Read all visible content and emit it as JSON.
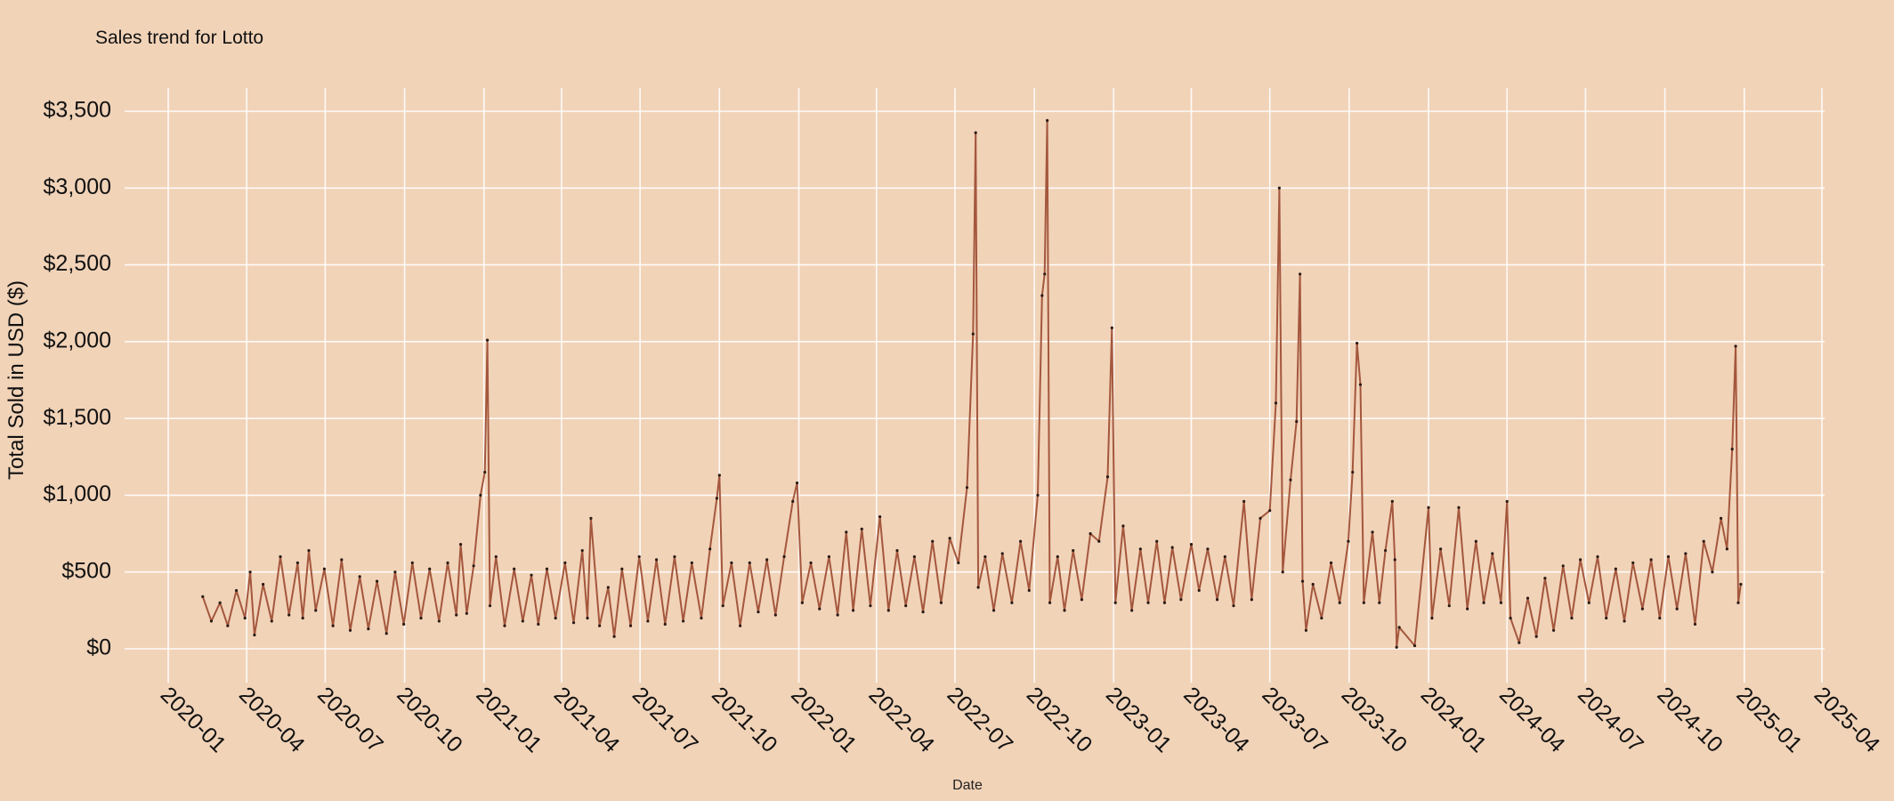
{
  "colors": {
    "background": "#f1d3b8",
    "line": "#a4573d",
    "point": "#2a1a14",
    "grid": "#ffffff"
  },
  "chart_data": {
    "type": "line",
    "title": "Sales trend for Lotto",
    "xlabel": "Date",
    "ylabel": "Total Sold in USD ($)",
    "xlim": [
      "2020-01-01",
      "2025-04-01"
    ],
    "ylim": [
      0,
      3500
    ],
    "grid": true,
    "markers": true,
    "yticks": [
      0,
      500,
      1000,
      1500,
      2000,
      2500,
      3000,
      3500
    ],
    "ytick_labels": [
      "$0",
      "$500",
      "$1,000",
      "$1,500",
      "$2,000",
      "$2,500",
      "$3,000",
      "$3,500"
    ],
    "xticks": [
      "2020-01",
      "2020-04",
      "2020-07",
      "2020-10",
      "2021-01",
      "2021-04",
      "2021-07",
      "2021-10",
      "2022-01",
      "2022-04",
      "2022-07",
      "2022-10",
      "2023-01",
      "2023-04",
      "2023-07",
      "2023-10",
      "2024-01",
      "2024-04",
      "2024-07",
      "2024-10",
      "2025-01",
      "2025-04"
    ],
    "points": [
      [
        "2020-02-10",
        340
      ],
      [
        "2020-02-20",
        180
      ],
      [
        "2020-03-01",
        300
      ],
      [
        "2020-03-10",
        150
      ],
      [
        "2020-03-20",
        380
      ],
      [
        "2020-03-30",
        200
      ],
      [
        "2020-04-05",
        500
      ],
      [
        "2020-04-10",
        90
      ],
      [
        "2020-04-20",
        420
      ],
      [
        "2020-04-30",
        180
      ],
      [
        "2020-05-10",
        600
      ],
      [
        "2020-05-20",
        220
      ],
      [
        "2020-05-30",
        560
      ],
      [
        "2020-06-05",
        200
      ],
      [
        "2020-06-12",
        640
      ],
      [
        "2020-06-20",
        250
      ],
      [
        "2020-06-30",
        520
      ],
      [
        "2020-07-10",
        150
      ],
      [
        "2020-07-20",
        580
      ],
      [
        "2020-07-30",
        120
      ],
      [
        "2020-08-10",
        470
      ],
      [
        "2020-08-20",
        130
      ],
      [
        "2020-08-30",
        440
      ],
      [
        "2020-09-10",
        100
      ],
      [
        "2020-09-20",
        500
      ],
      [
        "2020-09-30",
        160
      ],
      [
        "2020-10-10",
        560
      ],
      [
        "2020-10-20",
        200
      ],
      [
        "2020-10-30",
        520
      ],
      [
        "2020-11-10",
        180
      ],
      [
        "2020-11-20",
        560
      ],
      [
        "2020-11-30",
        220
      ],
      [
        "2020-12-05",
        680
      ],
      [
        "2020-12-12",
        230
      ],
      [
        "2020-12-20",
        540
      ],
      [
        "2020-12-28",
        1000
      ],
      [
        "2021-01-02",
        1150
      ],
      [
        "2021-01-05",
        2010
      ],
      [
        "2021-01-08",
        280
      ],
      [
        "2021-01-15",
        600
      ],
      [
        "2021-01-25",
        150
      ],
      [
        "2021-02-05",
        520
      ],
      [
        "2021-02-15",
        180
      ],
      [
        "2021-02-25",
        480
      ],
      [
        "2021-03-05",
        160
      ],
      [
        "2021-03-15",
        520
      ],
      [
        "2021-03-25",
        200
      ],
      [
        "2021-04-05",
        560
      ],
      [
        "2021-04-15",
        170
      ],
      [
        "2021-04-25",
        640
      ],
      [
        "2021-05-01",
        200
      ],
      [
        "2021-05-05",
        850
      ],
      [
        "2021-05-15",
        150
      ],
      [
        "2021-05-25",
        400
      ],
      [
        "2021-06-01",
        80
      ],
      [
        "2021-06-10",
        520
      ],
      [
        "2021-06-20",
        150
      ],
      [
        "2021-06-30",
        600
      ],
      [
        "2021-07-10",
        180
      ],
      [
        "2021-07-20",
        580
      ],
      [
        "2021-07-30",
        160
      ],
      [
        "2021-08-10",
        600
      ],
      [
        "2021-08-20",
        180
      ],
      [
        "2021-08-30",
        560
      ],
      [
        "2021-09-10",
        200
      ],
      [
        "2021-09-20",
        650
      ],
      [
        "2021-09-28",
        980
      ],
      [
        "2021-10-01",
        1130
      ],
      [
        "2021-10-05",
        280
      ],
      [
        "2021-10-15",
        560
      ],
      [
        "2021-10-25",
        150
      ],
      [
        "2021-11-05",
        560
      ],
      [
        "2021-11-15",
        240
      ],
      [
        "2021-11-25",
        580
      ],
      [
        "2021-12-05",
        220
      ],
      [
        "2021-12-15",
        600
      ],
      [
        "2021-12-25",
        960
      ],
      [
        "2021-12-30",
        1080
      ],
      [
        "2022-01-05",
        300
      ],
      [
        "2022-01-15",
        560
      ],
      [
        "2022-01-25",
        260
      ],
      [
        "2022-02-05",
        600
      ],
      [
        "2022-02-15",
        220
      ],
      [
        "2022-02-25",
        760
      ],
      [
        "2022-03-05",
        250
      ],
      [
        "2022-03-15",
        780
      ],
      [
        "2022-03-25",
        280
      ],
      [
        "2022-04-05",
        860
      ],
      [
        "2022-04-15",
        250
      ],
      [
        "2022-04-25",
        640
      ],
      [
        "2022-05-05",
        280
      ],
      [
        "2022-05-15",
        600
      ],
      [
        "2022-05-25",
        240
      ],
      [
        "2022-06-05",
        700
      ],
      [
        "2022-06-15",
        300
      ],
      [
        "2022-06-25",
        720
      ],
      [
        "2022-07-05",
        560
      ],
      [
        "2022-07-15",
        1050
      ],
      [
        "2022-07-22",
        2050
      ],
      [
        "2022-07-25",
        3360
      ],
      [
        "2022-07-28",
        400
      ],
      [
        "2022-08-05",
        600
      ],
      [
        "2022-08-15",
        250
      ],
      [
        "2022-08-25",
        620
      ],
      [
        "2022-09-05",
        300
      ],
      [
        "2022-09-15",
        700
      ],
      [
        "2022-09-25",
        380
      ],
      [
        "2022-10-05",
        1000
      ],
      [
        "2022-10-10",
        2300
      ],
      [
        "2022-10-13",
        2440
      ],
      [
        "2022-10-16",
        3440
      ],
      [
        "2022-10-19",
        300
      ],
      [
        "2022-10-28",
        600
      ],
      [
        "2022-11-05",
        250
      ],
      [
        "2022-11-15",
        640
      ],
      [
        "2022-11-25",
        320
      ],
      [
        "2022-12-05",
        750
      ],
      [
        "2022-12-15",
        700
      ],
      [
        "2022-12-25",
        1120
      ],
      [
        "2022-12-30",
        2090
      ],
      [
        "2023-01-03",
        300
      ],
      [
        "2023-01-12",
        800
      ],
      [
        "2023-01-22",
        250
      ],
      [
        "2023-02-01",
        650
      ],
      [
        "2023-02-10",
        300
      ],
      [
        "2023-02-20",
        700
      ],
      [
        "2023-03-01",
        300
      ],
      [
        "2023-03-10",
        660
      ],
      [
        "2023-03-20",
        320
      ],
      [
        "2023-04-01",
        680
      ],
      [
        "2023-04-10",
        380
      ],
      [
        "2023-04-20",
        650
      ],
      [
        "2023-05-01",
        320
      ],
      [
        "2023-05-10",
        600
      ],
      [
        "2023-05-20",
        280
      ],
      [
        "2023-06-01",
        960
      ],
      [
        "2023-06-10",
        320
      ],
      [
        "2023-06-20",
        850
      ],
      [
        "2023-07-01",
        900
      ],
      [
        "2023-07-08",
        1600
      ],
      [
        "2023-07-12",
        3000
      ],
      [
        "2023-07-16",
        500
      ],
      [
        "2023-07-25",
        1100
      ],
      [
        "2023-08-01",
        1480
      ],
      [
        "2023-08-05",
        2440
      ],
      [
        "2023-08-08",
        440
      ],
      [
        "2023-08-12",
        120
      ],
      [
        "2023-08-20",
        420
      ],
      [
        "2023-08-30",
        200
      ],
      [
        "2023-09-10",
        560
      ],
      [
        "2023-09-20",
        300
      ],
      [
        "2023-09-30",
        700
      ],
      [
        "2023-10-05",
        1150
      ],
      [
        "2023-10-10",
        1990
      ],
      [
        "2023-10-14",
        1720
      ],
      [
        "2023-10-18",
        300
      ],
      [
        "2023-10-28",
        760
      ],
      [
        "2023-11-05",
        300
      ],
      [
        "2023-11-12",
        640
      ],
      [
        "2023-11-20",
        960
      ],
      [
        "2023-11-23",
        580
      ],
      [
        "2023-11-25",
        10
      ],
      [
        "2023-11-28",
        140
      ],
      [
        "2023-12-16",
        20
      ],
      [
        "2024-01-01",
        920
      ],
      [
        "2024-01-05",
        200
      ],
      [
        "2024-01-15",
        650
      ],
      [
        "2024-01-25",
        280
      ],
      [
        "2024-02-05",
        920
      ],
      [
        "2024-02-15",
        260
      ],
      [
        "2024-02-25",
        700
      ],
      [
        "2024-03-05",
        300
      ],
      [
        "2024-03-15",
        620
      ],
      [
        "2024-03-25",
        300
      ],
      [
        "2024-04-01",
        960
      ],
      [
        "2024-04-05",
        200
      ],
      [
        "2024-04-15",
        40
      ],
      [
        "2024-04-25",
        330
      ],
      [
        "2024-05-05",
        80
      ],
      [
        "2024-05-15",
        460
      ],
      [
        "2024-05-25",
        120
      ],
      [
        "2024-06-05",
        540
      ],
      [
        "2024-06-15",
        200
      ],
      [
        "2024-06-25",
        580
      ],
      [
        "2024-07-05",
        300
      ],
      [
        "2024-07-15",
        600
      ],
      [
        "2024-07-25",
        200
      ],
      [
        "2024-08-05",
        520
      ],
      [
        "2024-08-15",
        180
      ],
      [
        "2024-08-25",
        560
      ],
      [
        "2024-09-05",
        260
      ],
      [
        "2024-09-15",
        580
      ],
      [
        "2024-09-25",
        200
      ],
      [
        "2024-10-05",
        600
      ],
      [
        "2024-10-15",
        260
      ],
      [
        "2024-10-25",
        620
      ],
      [
        "2024-11-05",
        160
      ],
      [
        "2024-11-15",
        700
      ],
      [
        "2024-11-25",
        500
      ],
      [
        "2024-12-05",
        850
      ],
      [
        "2024-12-12",
        650
      ],
      [
        "2024-12-18",
        1300
      ],
      [
        "2024-12-22",
        1970
      ],
      [
        "2024-12-25",
        300
      ],
      [
        "2024-12-28",
        420
      ]
    ]
  }
}
